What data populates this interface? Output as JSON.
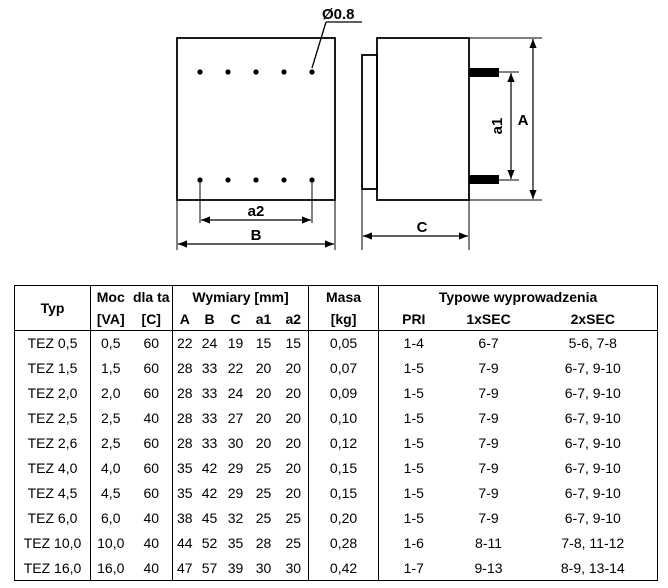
{
  "drawing": {
    "pin_diameter_label": "Ø0.8",
    "dim_a2": "a2",
    "dim_B": "B",
    "dim_C": "C",
    "dim_a1": "a1",
    "dim_A": "A"
  },
  "table": {
    "header": {
      "typ": "Typ",
      "moc": "Moc",
      "moc_unit": "[VA]",
      "dla_ta": "dla ta",
      "dla_ta_unit": "[C]",
      "wymiary": "Wymiary [mm]",
      "a": "A",
      "b": "B",
      "c": "C",
      "a1": "a1",
      "a2": "a2",
      "masa": "Masa",
      "masa_unit": "[kg]",
      "typowe": "Typowe wyprowadzenia",
      "pri": "PRI",
      "sec1": "1xSEC",
      "sec2": "2xSEC"
    },
    "rows": [
      {
        "typ": "TEZ 0,5",
        "moc": "0,5",
        "ta": "60",
        "A": "22",
        "B": "24",
        "C": "19",
        "a1": "15",
        "a2": "15",
        "masa": "0,05",
        "pri": "1-4",
        "sec1": "6-7",
        "sec2": "5-6, 7-8"
      },
      {
        "typ": "TEZ 1,5",
        "moc": "1,5",
        "ta": "60",
        "A": "28",
        "B": "33",
        "C": "22",
        "a1": "20",
        "a2": "20",
        "masa": "0,07",
        "pri": "1-5",
        "sec1": "7-9",
        "sec2": "6-7, 9-10"
      },
      {
        "typ": "TEZ 2,0",
        "moc": "2,0",
        "ta": "60",
        "A": "28",
        "B": "33",
        "C": "24",
        "a1": "20",
        "a2": "20",
        "masa": "0,09",
        "pri": "1-5",
        "sec1": "7-9",
        "sec2": "6-7, 9-10"
      },
      {
        "typ": "TEZ 2,5",
        "moc": "2,5",
        "ta": "40",
        "A": "28",
        "B": "33",
        "C": "27",
        "a1": "20",
        "a2": "20",
        "masa": "0,10",
        "pri": "1-5",
        "sec1": "7-9",
        "sec2": "6-7, 9-10"
      },
      {
        "typ": "TEZ 2,6",
        "moc": "2,5",
        "ta": "60",
        "A": "28",
        "B": "33",
        "C": "30",
        "a1": "20",
        "a2": "20",
        "masa": "0,12",
        "pri": "1-5",
        "sec1": "7-9",
        "sec2": "6-7, 9-10"
      },
      {
        "typ": "TEZ 4,0",
        "moc": "4,0",
        "ta": "60",
        "A": "35",
        "B": "42",
        "C": "29",
        "a1": "25",
        "a2": "20",
        "masa": "0,15",
        "pri": "1-5",
        "sec1": "7-9",
        "sec2": "6-7, 9-10"
      },
      {
        "typ": "TEZ 4,5",
        "moc": "4,5",
        "ta": "60",
        "A": "35",
        "B": "42",
        "C": "29",
        "a1": "25",
        "a2": "20",
        "masa": "0,15",
        "pri": "1-5",
        "sec1": "7-9",
        "sec2": "6-7, 9-10"
      },
      {
        "typ": "TEZ 6,0",
        "moc": "6,0",
        "ta": "40",
        "A": "38",
        "B": "45",
        "C": "32",
        "a1": "25",
        "a2": "25",
        "masa": "0,20",
        "pri": "1-5",
        "sec1": "7-9",
        "sec2": "6-7, 9-10"
      },
      {
        "typ": "TEZ 10,0",
        "moc": "10,0",
        "ta": "40",
        "A": "44",
        "B": "52",
        "C": "35",
        "a1": "28",
        "a2": "25",
        "masa": "0,28",
        "pri": "1-6",
        "sec1": "8-11",
        "sec2": "7-8, 11-12"
      },
      {
        "typ": "TEZ 16,0",
        "moc": "16,0",
        "ta": "40",
        "A": "47",
        "B": "57",
        "C": "39",
        "a1": "30",
        "a2": "30",
        "masa": "0,42",
        "pri": "1-7",
        "sec1": "9-13",
        "sec2": "8-9, 13-14"
      }
    ]
  }
}
